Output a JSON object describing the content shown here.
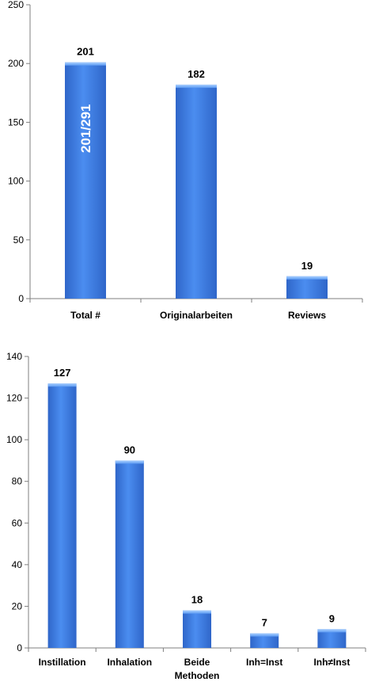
{
  "chart_data": [
    {
      "type": "bar",
      "categories": [
        "Total #",
        "Originalarbeiten",
        "Reviews"
      ],
      "values": [
        201,
        182,
        19
      ],
      "ylim": [
        0,
        250
      ],
      "yticks": [
        0,
        50,
        100,
        150,
        200,
        250
      ],
      "grid": false,
      "annotations": [
        {
          "category": "Total #",
          "text": "201/291"
        }
      ],
      "bar_color": "#3f7fe0"
    },
    {
      "type": "bar",
      "categories": [
        "Instillation",
        "Inhalation",
        "Beide Methoden",
        "Inh=Inst",
        "Inh≠Inst"
      ],
      "values": [
        127,
        90,
        18,
        7,
        9
      ],
      "ylim": [
        0,
        140
      ],
      "yticks": [
        0,
        20,
        40,
        60,
        80,
        100,
        120,
        140
      ],
      "grid": false,
      "bar_color": "#3f7fe0"
    }
  ]
}
